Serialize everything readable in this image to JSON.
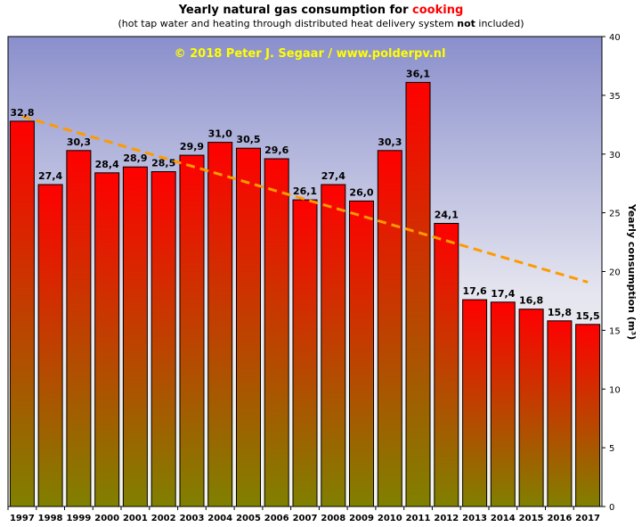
{
  "header": {
    "title_main": "Yearly natural gas consumption for",
    "title_highlight": "cooking",
    "subtitle_pre": "(hot tap water and heating through distributed heat delivery system",
    "subtitle_bold": "not",
    "subtitle_post": "included)"
  },
  "chart_data": {
    "type": "bar",
    "watermark": "© 2018 Peter J. Segaar / www.polderpv.nl",
    "ylabel": "Yearly consumption (m³)",
    "ylim": [
      0,
      40
    ],
    "yticks": [
      "0",
      "5",
      "10",
      "15",
      "20",
      "25",
      "30",
      "35",
      "40"
    ],
    "y_axis_side": "right",
    "grid": false,
    "categories": [
      "1997",
      "1998",
      "1999",
      "2000",
      "2001",
      "2002",
      "2003",
      "2004",
      "2005",
      "2006",
      "2007",
      "2008",
      "2009",
      "2010",
      "2011",
      "2012",
      "2013",
      "2014",
      "2015",
      "2016",
      "2017"
    ],
    "values": [
      32.8,
      27.4,
      30.3,
      28.4,
      28.9,
      28.5,
      29.9,
      31.0,
      30.5,
      29.6,
      26.1,
      27.4,
      26.0,
      30.3,
      36.1,
      24.1,
      17.6,
      17.4,
      16.8,
      15.8,
      15.5
    ],
    "value_labels": [
      "32,8",
      "27,4",
      "30,3",
      "28,4",
      "28,9",
      "28,5",
      "29,9",
      "31,0",
      "30,5",
      "29,6",
      "26,1",
      "27,4",
      "26,0",
      "30,3",
      "36,1",
      "24,1",
      "17,6",
      "17,4",
      "16,8",
      "15,8",
      "15,5"
    ],
    "trendline": {
      "start": 33.2,
      "end": 19.1,
      "color": "#ff9a00",
      "style": "dashed"
    },
    "colors": {
      "bar_top": "#ff0000",
      "bar_bottom": "#808000",
      "bg_top": "#8a8fcc",
      "bg_mid": "#e6e6f0",
      "bg_bottom": "#f4f4ec",
      "watermark": "#ffff00"
    }
  }
}
